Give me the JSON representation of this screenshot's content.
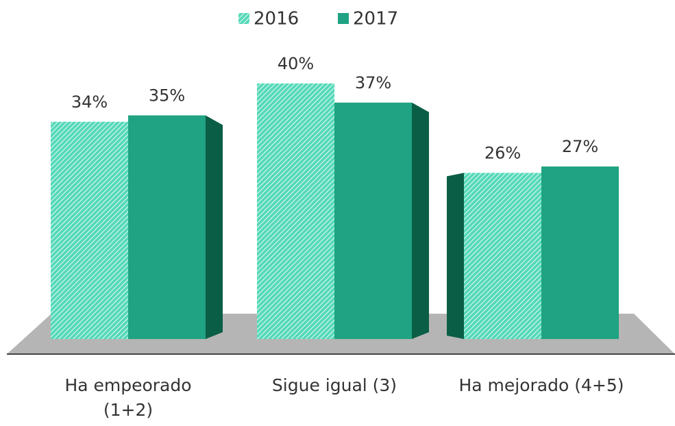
{
  "chart_data": {
    "type": "bar3d",
    "categories": [
      "Ha empeorado (1+2)",
      "Sigue igual (3)",
      "Ha mejorado (4+5)"
    ],
    "series": [
      {
        "name": "2016",
        "color": "#56d9b9",
        "values": [
          34,
          40,
          26
        ],
        "value_labels": [
          "34%",
          "40%",
          "26%"
        ]
      },
      {
        "name": "2017",
        "color": "#1fa382",
        "values": [
          35,
          37,
          27
        ],
        "value_labels": [
          "35%",
          "37%",
          "27%"
        ]
      }
    ],
    "legend": "top"
  }
}
